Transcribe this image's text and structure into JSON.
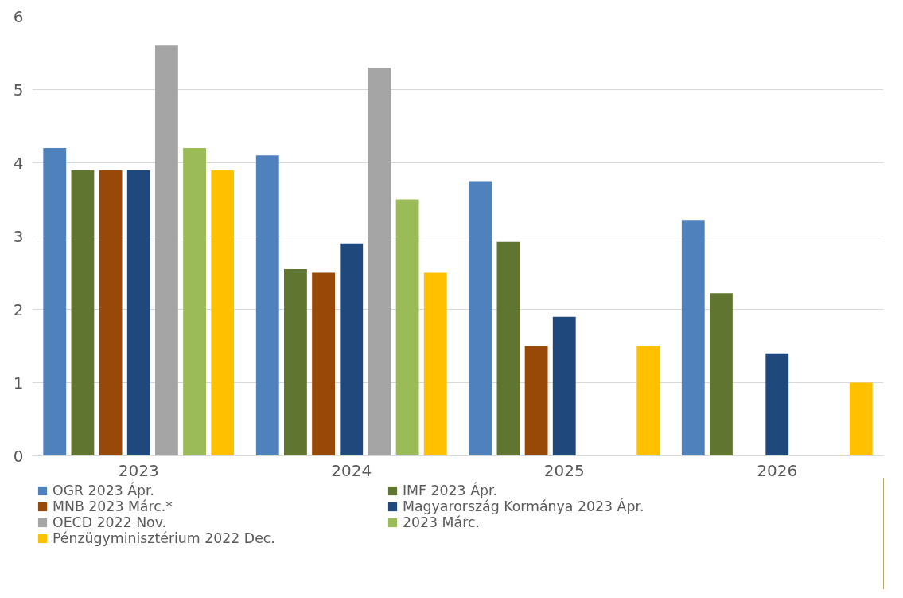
{
  "chart_data": {
    "type": "bar",
    "categories": [
      "2023",
      "2024",
      "2025",
      "2026"
    ],
    "series": [
      {
        "name": "OGR 2023 Ápr.",
        "color": "#4f81bd",
        "values": [
          4.2,
          4.1,
          3.75,
          3.22
        ]
      },
      {
        "name": "IMF 2023 Ápr.",
        "color": "#5f7530",
        "values": [
          3.9,
          2.55,
          2.92,
          2.22
        ]
      },
      {
        "name": "MNB 2023 Márc.*",
        "color": "#984807",
        "values": [
          3.9,
          2.5,
          1.5,
          null
        ]
      },
      {
        "name": "Magyarország Kormánya 2023 Ápr.",
        "color": "#1f497d",
        "values": [
          3.9,
          2.9,
          1.9,
          1.4
        ]
      },
      {
        "name": "OECD 2022 Nov.",
        "color": "#a5a5a5",
        "values": [
          5.6,
          5.3,
          null,
          null
        ]
      },
      {
        "name": "2023 Márc.",
        "color": "#9bbb59",
        "values": [
          4.2,
          3.5,
          null,
          null
        ]
      },
      {
        "name": "Pénzügyminisztérium 2022 Dec.",
        "color": "#ffc000",
        "values": [
          3.9,
          2.5,
          1.5,
          1.0
        ]
      }
    ],
    "ylim": [
      0,
      6
    ],
    "yticks": [
      0,
      1,
      2,
      3,
      4,
      5,
      6
    ],
    "grid": "y",
    "legend": "bottom"
  }
}
